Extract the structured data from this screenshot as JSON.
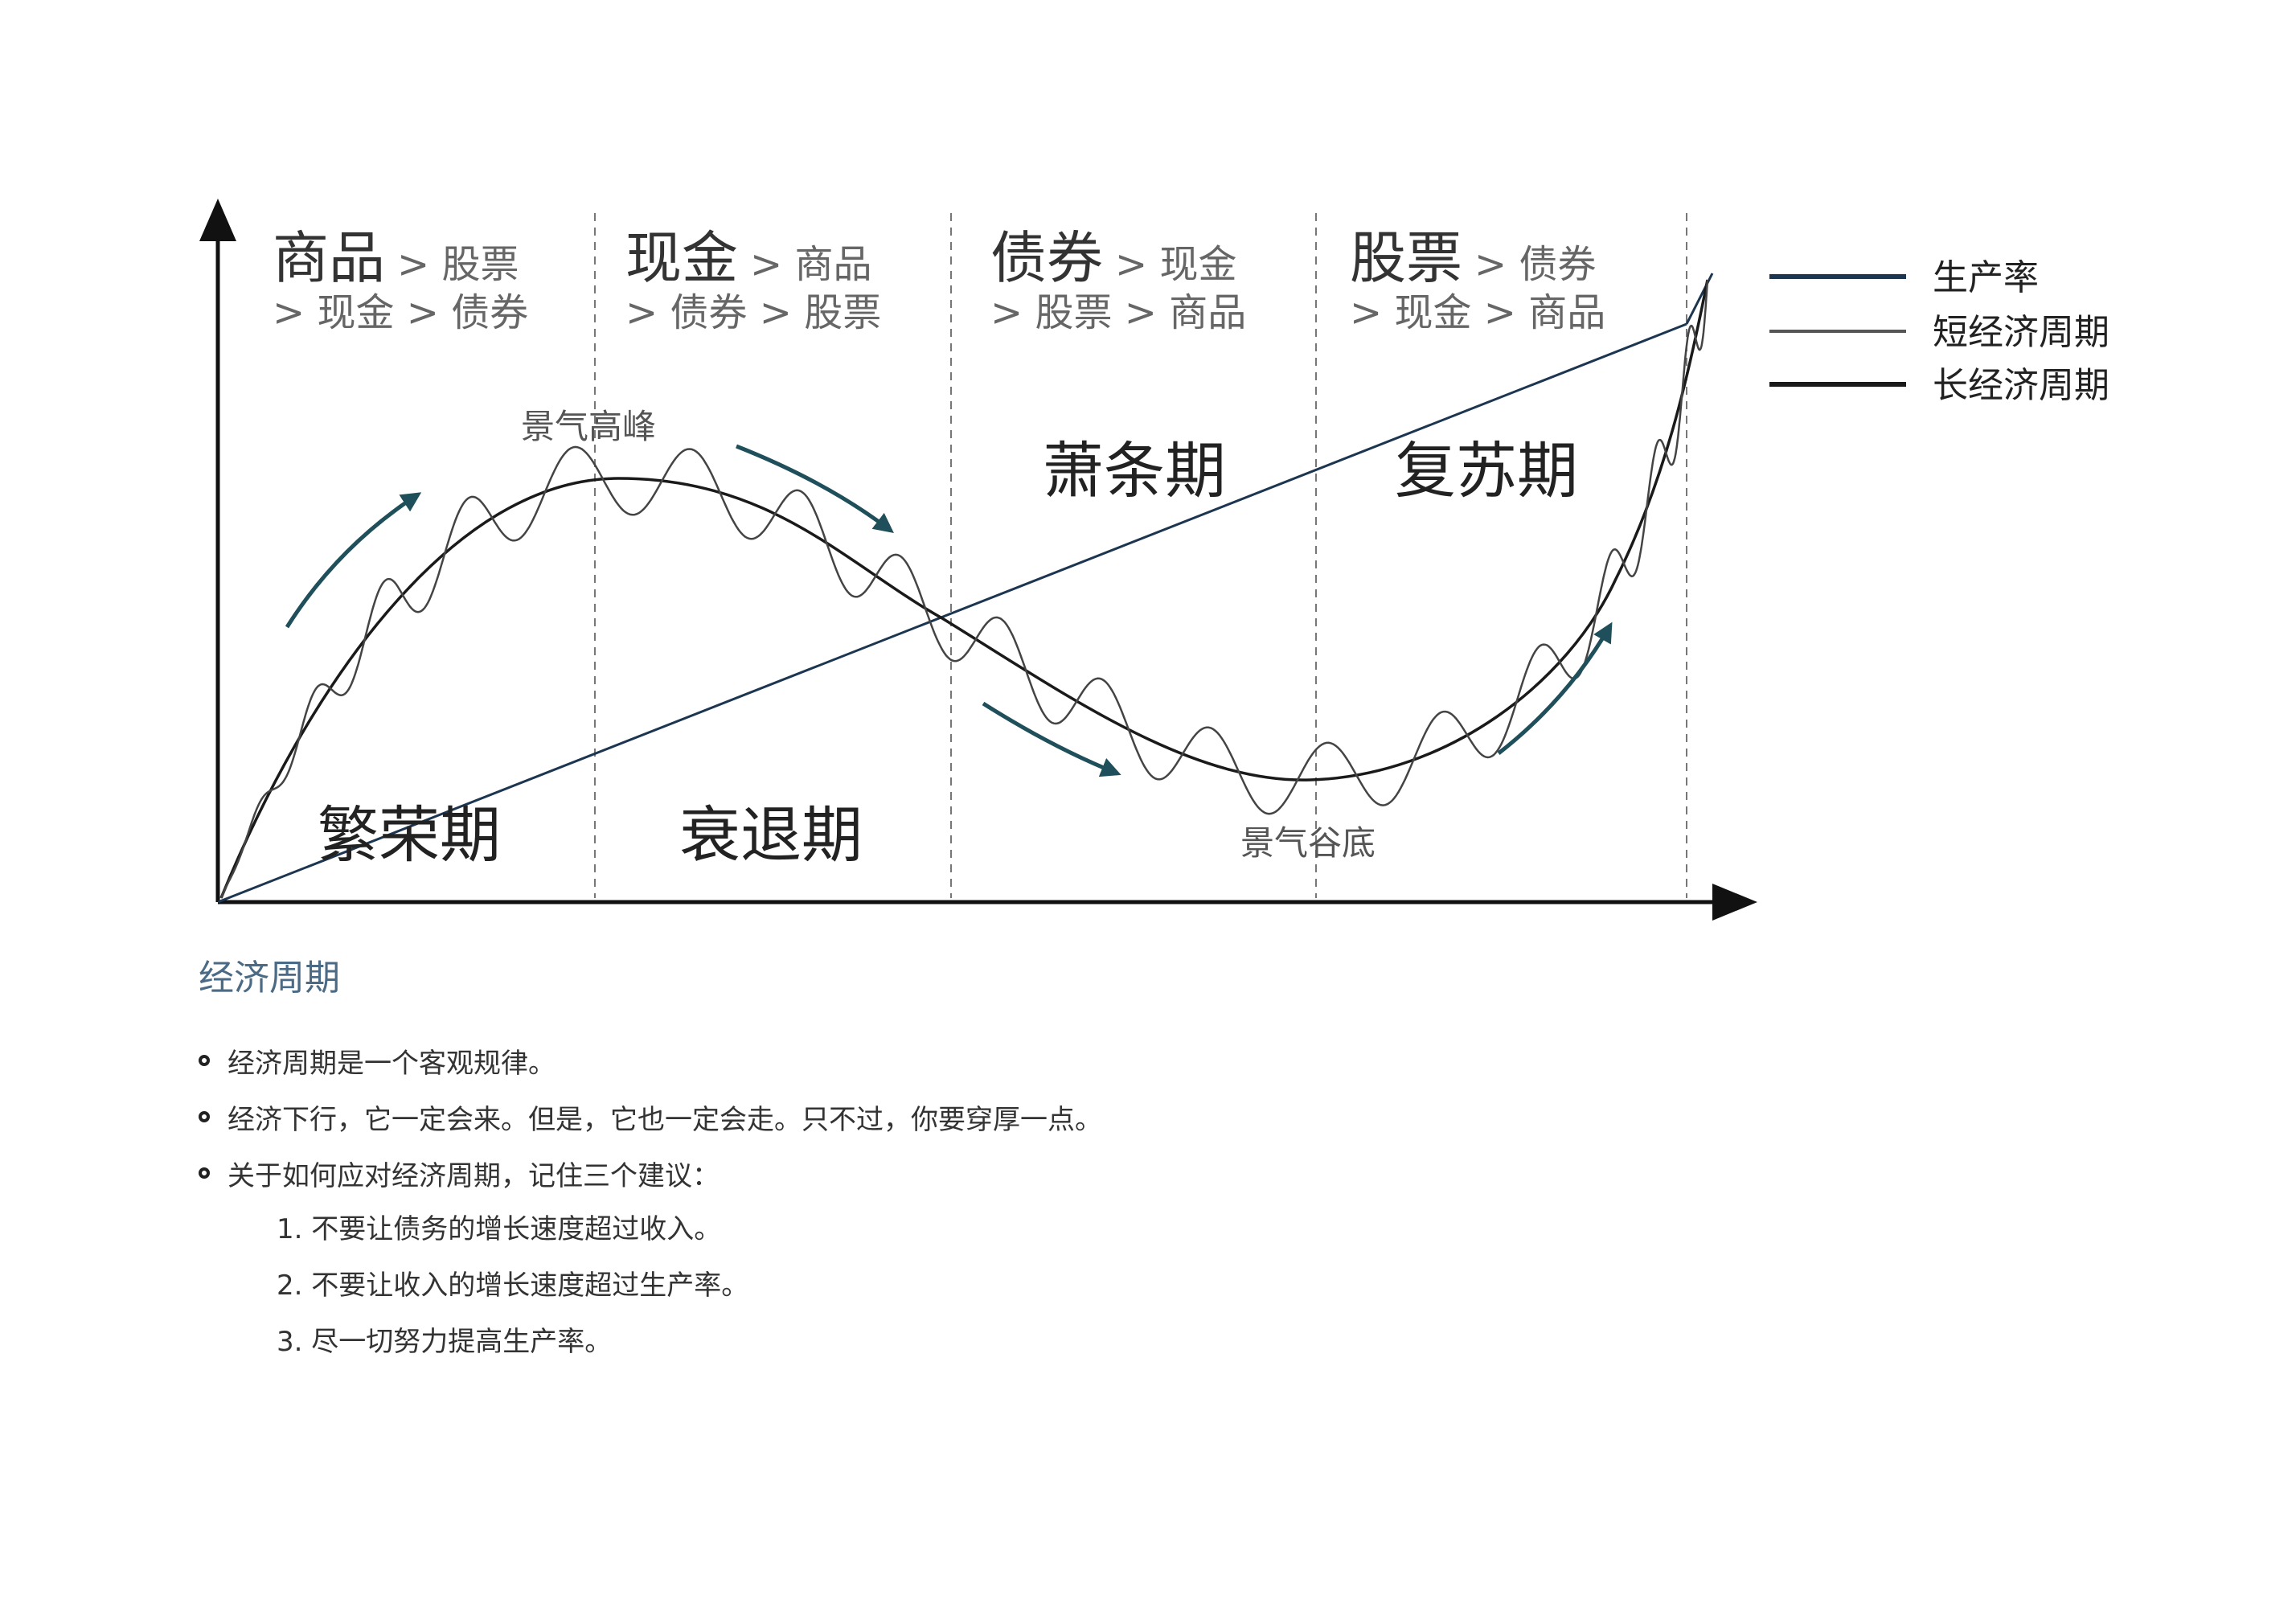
{
  "columns": [
    {
      "big": "商品",
      "line1_rest": "> 股票",
      "line2": "> 现金 > 债券"
    },
    {
      "big": "现金",
      "line1_rest": "> 商品",
      "line2": "> 债券 > 股票"
    },
    {
      "big": "债券",
      "line1_rest": "> 现金",
      "line2": "> 股票 > 商品"
    },
    {
      "big": "股票",
      "line1_rest": "> 债券",
      "line2": "> 现金 > 商品"
    }
  ],
  "phases": [
    "繁荣期",
    "衰退期",
    "萧条期",
    "复苏期"
  ],
  "annotations": {
    "peak": "景气高峰",
    "trough": "景气谷底"
  },
  "legend": [
    {
      "label": "生产率",
      "color": "#1c3550"
    },
    {
      "label": "短经济周期",
      "color": "#555555"
    },
    {
      "label": "长经济周期",
      "color": "#1a1a1a"
    }
  ],
  "arrow_color": "#1f4f5a",
  "notes": {
    "title": "经济周期",
    "bullets": [
      "经济周期是一个客观规律。",
      "经济下行，它一定会来。但是，它也一定会走。只不过，你要穿厚一点。",
      "关于如何应对经济周期，记住三个建议："
    ],
    "advice": [
      "1. 不要让债务的增长速度超过收入。",
      "2. 不要让收入的增长速度超过生产率。",
      "3. 尽一切努力提高生产率。"
    ]
  }
}
